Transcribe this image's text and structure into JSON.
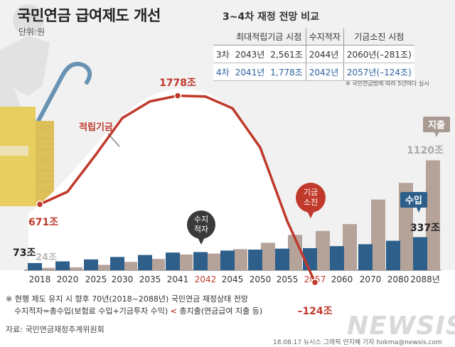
{
  "header": {
    "title": "국민연금 급여제도 개선",
    "unit": "단위:원"
  },
  "comparison": {
    "title": "3~4차 재정 전망 비교",
    "columns": [
      "최대적립기금 시점",
      "수지적자",
      "기금소진 시점"
    ],
    "rows": [
      {
        "label": "3차",
        "max_year": "2043년",
        "max_value": "2,561조",
        "deficit": "2044년",
        "depletion": "2060년(–281조)"
      },
      {
        "label": "4차",
        "max_year": "2041년",
        "max_value": "1,778조",
        "deficit": "2042년",
        "depletion": "2057년(–124조)"
      }
    ],
    "note": "※ 국민연금법에 따라 5년마다 실시"
  },
  "chart_data": {
    "type": "bar+line",
    "categories": [
      "2018",
      "2020",
      "2025",
      "2030",
      "2035",
      "2041",
      "2042",
      "2045",
      "2050",
      "2055",
      "2057",
      "2060",
      "2070",
      "2080",
      "2088년"
    ],
    "highlight_categories": [
      "2042",
      "2057"
    ],
    "series": [
      {
        "name": "수입",
        "type": "bar",
        "color": "#2e5f8a",
        "values": [
          73,
          90,
          110,
          135,
          155,
          180,
          185,
          200,
          210,
          220,
          225,
          245,
          265,
          300,
          337
        ]
      },
      {
        "name": "지출",
        "type": "bar",
        "color": "#b5a39a",
        "values": [
          24,
          30,
          55,
          85,
          115,
          160,
          170,
          215,
          280,
          360,
          400,
          470,
          720,
          890,
          1120
        ]
      },
      {
        "name": "적립기금",
        "type": "line",
        "color": "#c0392b",
        "values": [
          671,
          800,
          1180,
          1550,
          1720,
          1778,
          1770,
          1650,
          1250,
          500,
          -124,
          null,
          null,
          null,
          null
        ]
      }
    ],
    "labels": {
      "income_2018": "73조",
      "expense_2018": "24조",
      "fund_2018": "671조",
      "fund_peak": "1778조",
      "fund_min": "–124조",
      "income_2088": "337조",
      "expense_2088": "1120조",
      "series_fund": "적립기금",
      "series_income": "수입",
      "series_expense": "지출",
      "deficit_tag": "수지\n적자",
      "depletion_tag": "기금\n소진"
    }
  },
  "footnote": {
    "line1": "※ 현행 제도 유지 시 향후 70년(2018~2088년) 국민연금 재정상태 전망",
    "line2_a": "수지적자=총수입(보험료 수입+기금투자 수익)",
    "line2_lt": "<",
    "line2_b": "총지출(연금급여 지출 등)"
  },
  "source": "자료: 국민연금재정추계위원회",
  "credit": "18.08.17  뉴시스 그래픽 안지혜 기자  hokma@newsis.com",
  "logo": "NEWSIS"
}
